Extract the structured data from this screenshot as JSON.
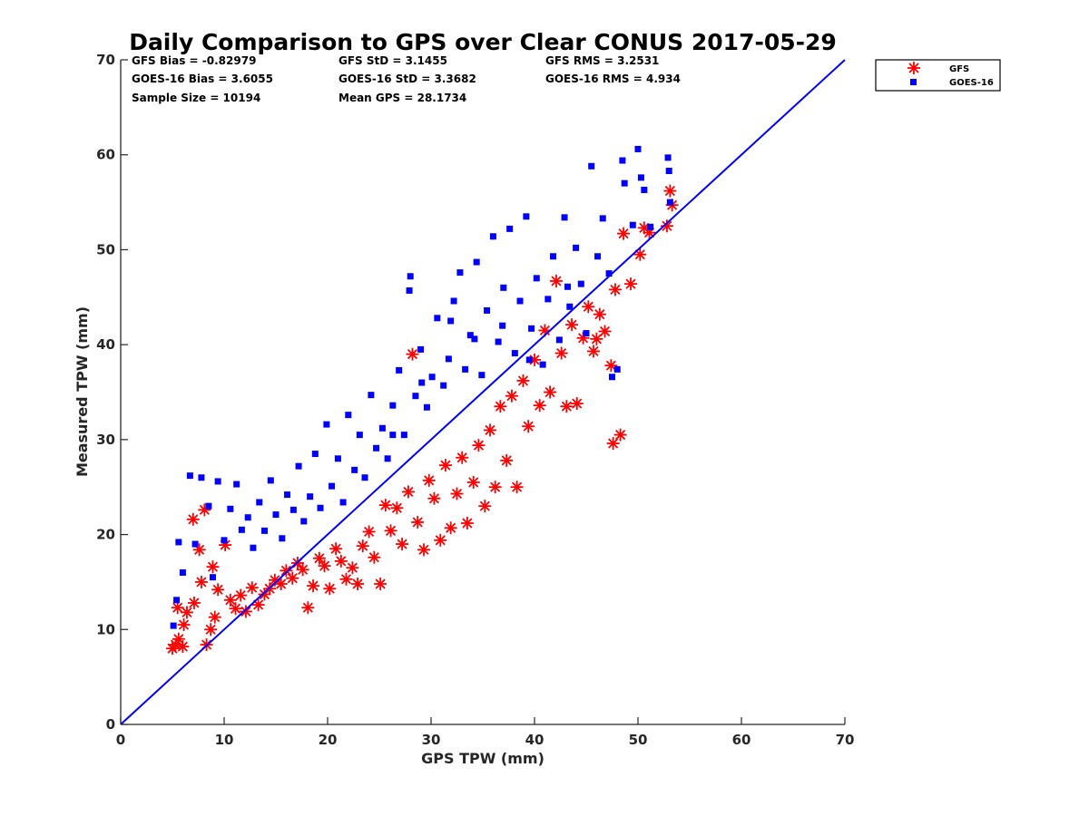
{
  "chart_data": {
    "type": "scatter",
    "title": "Daily Comparison to GPS over Clear CONUS 2017-05-29",
    "xlabel": "GPS TPW (mm)",
    "ylabel": "Measured TPW (mm)",
    "xlim": [
      0,
      70
    ],
    "ylim": [
      0,
      70
    ],
    "xticks": [
      "0",
      "10",
      "20",
      "30",
      "40",
      "50",
      "60",
      "70"
    ],
    "yticks": [
      "0",
      "10",
      "20",
      "30",
      "40",
      "50",
      "60",
      "70"
    ],
    "reference_line": {
      "name": "1:1 line",
      "from": [
        0,
        0
      ],
      "to": [
        70,
        70
      ],
      "color": "#0000ff"
    },
    "stats": {
      "gfs_bias": "GFS Bias = -0.82979",
      "gfs_std": "GFS StD = 3.1455",
      "gfs_rms": "GFS RMS = 3.2531",
      "goes_bias": "GOES-16 Bias = 3.6055",
      "goes_std": "GOES-16 StD = 3.3682",
      "goes_rms": "GOES-16 RMS = 4.934",
      "sample_size": "Sample Size = 10194",
      "mean_gps": "Mean GPS = 28.1734"
    },
    "legend": {
      "placement": "outside-top-right",
      "entries": [
        {
          "name": "GFS",
          "marker": "asterisk",
          "color": "#ff0000"
        },
        {
          "name": "GOES-16",
          "marker": "square",
          "color": "#0000ff"
        }
      ]
    },
    "series": [
      {
        "name": "GFS",
        "marker": "asterisk",
        "color": "#ff0000",
        "points": [
          [
            5.0,
            8.0
          ],
          [
            5.3,
            8.4
          ],
          [
            5.6,
            9.0
          ],
          [
            6.0,
            8.2
          ],
          [
            5.5,
            12.3
          ],
          [
            6.1,
            10.5
          ],
          [
            6.4,
            11.8
          ],
          [
            7.0,
            21.6
          ],
          [
            8.1,
            22.6
          ],
          [
            7.6,
            18.4
          ],
          [
            8.3,
            8.4
          ],
          [
            8.7,
            10.0
          ],
          [
            9.1,
            11.3
          ],
          [
            7.1,
            12.8
          ],
          [
            7.8,
            15.0
          ],
          [
            8.9,
            16.6
          ],
          [
            9.4,
            14.2
          ],
          [
            10.1,
            18.9
          ],
          [
            10.6,
            13.1
          ],
          [
            11.1,
            12.2
          ],
          [
            11.6,
            13.6
          ],
          [
            12.1,
            11.9
          ],
          [
            12.7,
            14.4
          ],
          [
            13.3,
            12.6
          ],
          [
            13.9,
            13.7
          ],
          [
            14.4,
            14.3
          ],
          [
            14.9,
            15.2
          ],
          [
            15.5,
            14.8
          ],
          [
            16.0,
            16.2
          ],
          [
            16.6,
            15.4
          ],
          [
            17.1,
            17.0
          ],
          [
            17.6,
            16.3
          ],
          [
            18.1,
            12.3
          ],
          [
            18.6,
            14.6
          ],
          [
            19.2,
            17.5
          ],
          [
            19.7,
            16.7
          ],
          [
            20.2,
            14.3
          ],
          [
            20.8,
            18.5
          ],
          [
            21.3,
            17.2
          ],
          [
            21.8,
            15.3
          ],
          [
            22.4,
            16.5
          ],
          [
            22.9,
            14.8
          ],
          [
            23.4,
            18.8
          ],
          [
            24.0,
            20.3
          ],
          [
            24.5,
            17.6
          ],
          [
            25.1,
            14.8
          ],
          [
            25.6,
            23.1
          ],
          [
            26.1,
            20.4
          ],
          [
            26.7,
            22.8
          ],
          [
            27.2,
            19.0
          ],
          [
            27.8,
            24.5
          ],
          [
            28.2,
            39.0
          ],
          [
            28.7,
            21.3
          ],
          [
            29.3,
            18.4
          ],
          [
            29.8,
            25.7
          ],
          [
            30.3,
            23.8
          ],
          [
            30.9,
            19.4
          ],
          [
            31.4,
            27.3
          ],
          [
            31.9,
            20.7
          ],
          [
            32.5,
            24.3
          ],
          [
            33.0,
            28.1
          ],
          [
            33.5,
            21.2
          ],
          [
            34.1,
            25.5
          ],
          [
            34.6,
            29.4
          ],
          [
            35.2,
            23.0
          ],
          [
            35.7,
            31.0
          ],
          [
            36.2,
            25.0
          ],
          [
            36.7,
            33.5
          ],
          [
            37.3,
            27.8
          ],
          [
            37.8,
            34.6
          ],
          [
            38.3,
            25.0
          ],
          [
            38.9,
            36.2
          ],
          [
            39.4,
            31.4
          ],
          [
            40.0,
            38.4
          ],
          [
            40.5,
            33.6
          ],
          [
            41.0,
            41.5
          ],
          [
            41.5,
            35.0
          ],
          [
            42.1,
            46.7
          ],
          [
            42.6,
            39.1
          ],
          [
            43.1,
            33.5
          ],
          [
            43.6,
            42.1
          ],
          [
            44.1,
            33.8
          ],
          [
            44.7,
            40.7
          ],
          [
            45.2,
            44.0
          ],
          [
            45.7,
            39.3
          ],
          [
            46.3,
            43.2
          ],
          [
            46.8,
            41.4
          ],
          [
            47.4,
            37.8
          ],
          [
            47.6,
            29.6
          ],
          [
            48.3,
            30.5
          ],
          [
            48.6,
            51.7
          ],
          [
            49.3,
            46.4
          ],
          [
            50.2,
            49.5
          ],
          [
            50.6,
            52.3
          ],
          [
            51.1,
            51.8
          ],
          [
            53.1,
            56.2
          ],
          [
            53.3,
            54.7
          ],
          [
            52.8,
            52.5
          ],
          [
            47.8,
            45.8
          ],
          [
            46.0,
            40.6
          ]
        ]
      },
      {
        "name": "GOES-16",
        "marker": "square",
        "color": "#0000ff",
        "points": [
          [
            5.1,
            10.4
          ],
          [
            5.4,
            13.1
          ],
          [
            5.6,
            19.2
          ],
          [
            6.0,
            16.0
          ],
          [
            6.7,
            26.2
          ],
          [
            7.2,
            19.0
          ],
          [
            7.8,
            26.0
          ],
          [
            8.5,
            23.0
          ],
          [
            8.9,
            15.5
          ],
          [
            9.4,
            25.6
          ],
          [
            10.0,
            19.4
          ],
          [
            10.6,
            22.7
          ],
          [
            11.2,
            25.3
          ],
          [
            11.7,
            20.5
          ],
          [
            12.3,
            21.8
          ],
          [
            12.8,
            18.6
          ],
          [
            13.4,
            23.4
          ],
          [
            13.9,
            20.4
          ],
          [
            14.5,
            25.7
          ],
          [
            15.0,
            22.1
          ],
          [
            15.6,
            19.6
          ],
          [
            16.1,
            24.2
          ],
          [
            16.7,
            22.6
          ],
          [
            17.2,
            27.2
          ],
          [
            17.7,
            21.4
          ],
          [
            18.3,
            24.0
          ],
          [
            18.8,
            28.5
          ],
          [
            19.3,
            22.8
          ],
          [
            19.9,
            31.6
          ],
          [
            20.4,
            25.1
          ],
          [
            21.0,
            28.0
          ],
          [
            21.5,
            23.4
          ],
          [
            22.0,
            32.6
          ],
          [
            22.6,
            26.8
          ],
          [
            23.1,
            30.5
          ],
          [
            23.6,
            26.0
          ],
          [
            24.2,
            34.7
          ],
          [
            24.7,
            29.1
          ],
          [
            25.3,
            31.2
          ],
          [
            25.8,
            28.0
          ],
          [
            26.3,
            33.6
          ],
          [
            26.9,
            37.3
          ],
          [
            27.4,
            30.5
          ],
          [
            27.9,
            45.7
          ],
          [
            28.0,
            47.2
          ],
          [
            28.5,
            34.6
          ],
          [
            29.0,
            39.5
          ],
          [
            29.6,
            33.4
          ],
          [
            30.1,
            36.6
          ],
          [
            30.6,
            42.8
          ],
          [
            31.2,
            35.7
          ],
          [
            31.7,
            38.5
          ],
          [
            32.2,
            44.6
          ],
          [
            32.8,
            47.6
          ],
          [
            33.3,
            37.4
          ],
          [
            33.8,
            41.0
          ],
          [
            34.4,
            48.7
          ],
          [
            34.9,
            36.8
          ],
          [
            35.4,
            43.6
          ],
          [
            36.0,
            51.4
          ],
          [
            36.5,
            40.3
          ],
          [
            37.0,
            46.0
          ],
          [
            37.6,
            52.2
          ],
          [
            38.1,
            39.1
          ],
          [
            38.6,
            44.6
          ],
          [
            39.2,
            53.5
          ],
          [
            39.7,
            41.7
          ],
          [
            40.2,
            47.0
          ],
          [
            40.8,
            37.9
          ],
          [
            41.3,
            44.8
          ],
          [
            41.8,
            49.3
          ],
          [
            42.4,
            40.5
          ],
          [
            42.9,
            53.4
          ],
          [
            43.4,
            44.0
          ],
          [
            44.0,
            50.2
          ],
          [
            44.5,
            46.4
          ],
          [
            45.0,
            41.2
          ],
          [
            45.5,
            58.8
          ],
          [
            46.1,
            49.3
          ],
          [
            46.6,
            53.3
          ],
          [
            47.2,
            47.5
          ],
          [
            47.5,
            36.6
          ],
          [
            48.0,
            37.4
          ],
          [
            48.5,
            59.4
          ],
          [
            48.7,
            57.0
          ],
          [
            49.5,
            52.6
          ],
          [
            50.0,
            60.6
          ],
          [
            50.3,
            57.6
          ],
          [
            50.6,
            56.3
          ],
          [
            51.2,
            52.4
          ],
          [
            52.9,
            59.7
          ],
          [
            53.0,
            58.3
          ],
          [
            53.1,
            55.0
          ],
          [
            34.2,
            40.6
          ],
          [
            31.9,
            42.5
          ],
          [
            29.1,
            36.0
          ],
          [
            26.3,
            30.5
          ],
          [
            36.9,
            42.0
          ],
          [
            39.5,
            38.4
          ],
          [
            43.2,
            46.1
          ]
        ]
      }
    ]
  }
}
